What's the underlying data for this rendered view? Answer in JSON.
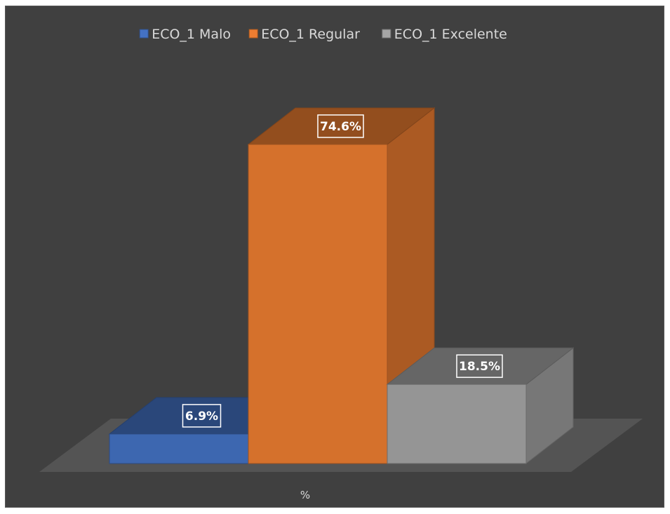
{
  "chart_data": {
    "type": "bar",
    "xlabel": "%",
    "ylabel": "",
    "categories": [
      "%"
    ],
    "series": [
      {
        "name": "ECO_1 Malo",
        "values": [
          6.9
        ],
        "label": "6.9%",
        "color": "#4472c4"
      },
      {
        "name": "ECO_1 Regular",
        "values": [
          74.6
        ],
        "label": "74.6%",
        "color": "#ed7d31"
      },
      {
        "name": "ECO_1 Excelente",
        "values": [
          18.5
        ],
        "label": "18.5%",
        "color": "#a5a5a5"
      }
    ],
    "ylim": [
      0,
      80
    ],
    "grid": false,
    "legend_position": "top",
    "style": "3d-column"
  }
}
